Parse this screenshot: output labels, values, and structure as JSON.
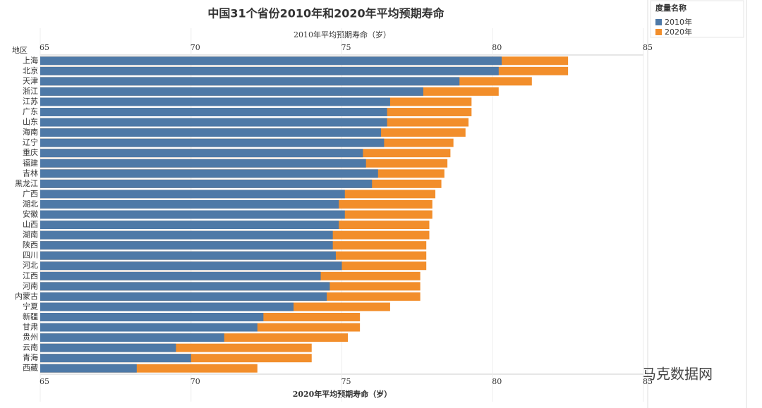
{
  "chart_data": {
    "type": "bar",
    "title": "中国31个省份2010年和2020年平均预期寿命",
    "x_label": "2010年平均预期寿命（岁）",
    "x2_label": "2020年平均预期寿命（岁）",
    "category_label": "地区",
    "legend_title": "度量名称",
    "categories": [
      "上海",
      "北京",
      "天津",
      "浙江",
      "江苏",
      "广东",
      "山东",
      "海南",
      "辽宁",
      "重庆",
      "福建",
      "吉林",
      "黑龙江",
      "广西",
      "湖北",
      "安徽",
      "山西",
      "湖南",
      "陕西",
      "四川",
      "河北",
      "江西",
      "河南",
      "内蒙古",
      "宁夏",
      "新疆",
      "甘肃",
      "贵州",
      "云南",
      "青海",
      "西藏"
    ],
    "series": [
      {
        "name": "2010年",
        "color": "#4e79a7",
        "axis": "x",
        "values": [
          80.3,
          80.2,
          78.9,
          77.7,
          76.6,
          76.5,
          76.5,
          76.3,
          76.4,
          75.7,
          75.8,
          76.2,
          76.0,
          75.1,
          74.9,
          75.1,
          74.9,
          74.7,
          74.7,
          74.8,
          75.0,
          74.3,
          74.6,
          74.5,
          73.4,
          72.4,
          72.2,
          71.1,
          69.5,
          70.0,
          68.2
        ]
      },
      {
        "name": "2020年",
        "color": "#f28e2b",
        "axis": "x2",
        "values": [
          82.5,
          82.5,
          81.3,
          80.2,
          79.3,
          79.3,
          79.2,
          79.1,
          78.7,
          78.6,
          78.5,
          78.4,
          78.3,
          78.1,
          78.0,
          78.0,
          77.9,
          77.9,
          77.8,
          77.8,
          77.8,
          77.6,
          77.6,
          77.6,
          76.6,
          75.6,
          75.6,
          75.2,
          74.0,
          74.0,
          72.2
        ]
      }
    ],
    "xlim": [
      65,
      85
    ],
    "xticks": [
      65,
      70,
      75,
      80,
      85
    ],
    "x2lim": [
      65,
      85
    ],
    "x2ticks": [
      65,
      70,
      75,
      80,
      85
    ],
    "grid": true,
    "legend": "right",
    "watermark": "马克数据网"
  }
}
